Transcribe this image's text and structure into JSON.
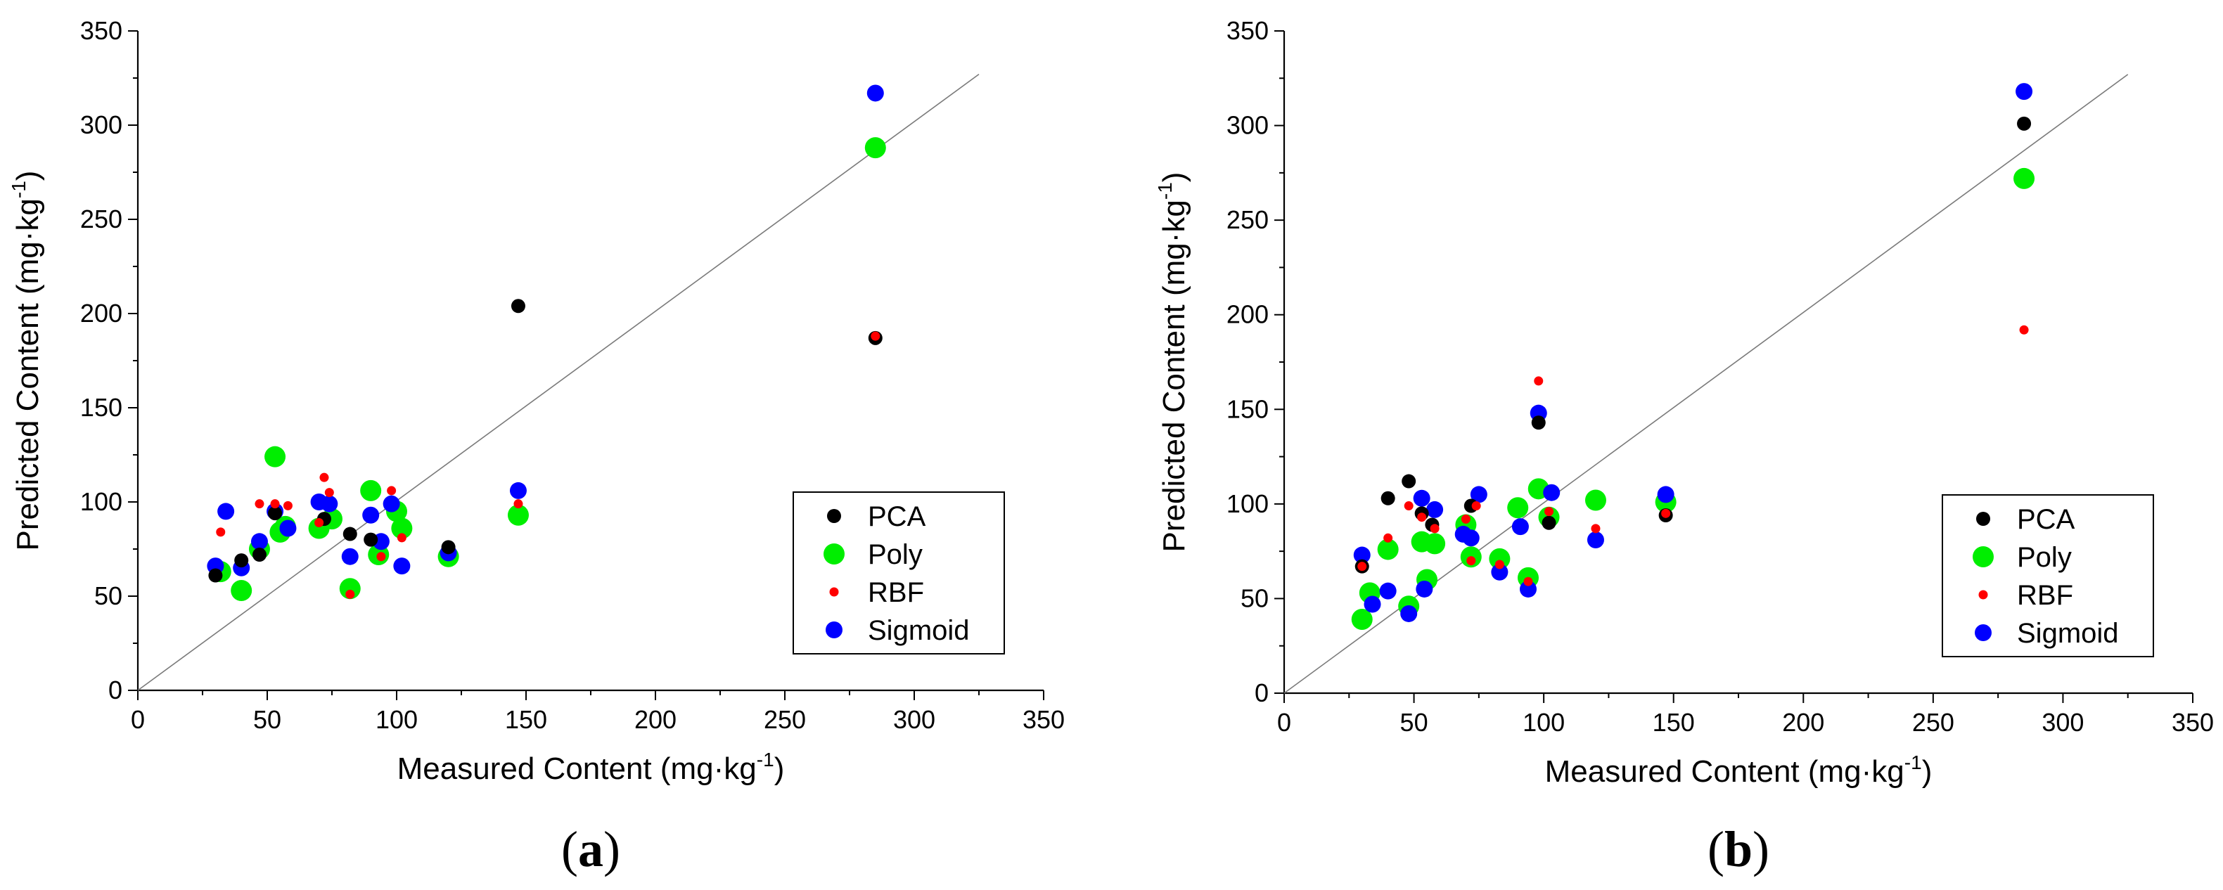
{
  "chart_data": [
    {
      "type": "scatter",
      "panel_label": "a",
      "xlabel": "Measured Content (mg·kg",
      "ylabel": "Predicted Content (mg·kg",
      "unit_superscript": "-1",
      "xlim": [
        0,
        350
      ],
      "ylim": [
        0,
        350
      ],
      "xticks": [
        "0",
        "50",
        "100",
        "150",
        "200",
        "250",
        "300",
        "350"
      ],
      "yticks": [
        "0",
        "50",
        "100",
        "150",
        "200",
        "250",
        "300",
        "350"
      ],
      "reference_line": {
        "x": [
          0,
          325
        ],
        "y": [
          0,
          327
        ]
      },
      "legend_position": "lower-right",
      "series": [
        {
          "name": "PCA",
          "color": "#000000",
          "x": [
            30,
            40,
            47,
            53,
            72,
            82,
            90,
            120,
            147,
            285
          ],
          "y": [
            61,
            69,
            72,
            94,
            91,
            83,
            80,
            76,
            204,
            187
          ]
        },
        {
          "name": "Poly",
          "color": "#00ee00",
          "x": [
            32,
            40,
            47,
            53,
            55,
            57,
            70,
            75,
            82,
            90,
            93,
            100,
            102,
            120,
            147,
            285
          ],
          "y": [
            63,
            53,
            75,
            124,
            84,
            87,
            86,
            91,
            54,
            106,
            72,
            95,
            86,
            71,
            93,
            288
          ]
        },
        {
          "name": "RBF",
          "color": "#ff0000",
          "x": [
            32,
            47,
            53,
            58,
            70,
            72,
            74,
            82,
            94,
            98,
            102,
            147,
            285
          ],
          "y": [
            84,
            99,
            99,
            98,
            89,
            113,
            105,
            51,
            71,
            106,
            81,
            99,
            188
          ]
        },
        {
          "name": "Sigmoid",
          "color": "#0000ff",
          "x": [
            30,
            34,
            40,
            47,
            53,
            58,
            70,
            74,
            82,
            90,
            94,
            98,
            102,
            120,
            147,
            285
          ],
          "y": [
            66,
            95,
            65,
            79,
            95,
            86,
            100,
            99,
            71,
            93,
            79,
            99,
            66,
            73,
            106,
            317
          ]
        }
      ]
    },
    {
      "type": "scatter",
      "panel_label": "b",
      "xlabel": "Measured Content (mg·kg",
      "ylabel": "Predicted Content (mg·kg",
      "unit_superscript": "-1",
      "xlim": [
        0,
        350
      ],
      "ylim": [
        0,
        350
      ],
      "xticks": [
        "0",
        "50",
        "100",
        "150",
        "200",
        "250",
        "300",
        "350"
      ],
      "yticks": [
        "0",
        "50",
        "100",
        "150",
        "200",
        "250",
        "300",
        "350"
      ],
      "reference_line": {
        "x": [
          0,
          325
        ],
        "y": [
          0,
          327
        ]
      },
      "legend_position": "lower-right",
      "series": [
        {
          "name": "PCA",
          "color": "#000000",
          "x": [
            30,
            40,
            48,
            53,
            57,
            72,
            98,
            102,
            147,
            285
          ],
          "y": [
            67,
            103,
            112,
            95,
            89,
            99,
            143,
            90,
            94,
            301
          ]
        },
        {
          "name": "Poly",
          "color": "#00ee00",
          "x": [
            30,
            33,
            40,
            48,
            53,
            55,
            58,
            70,
            72,
            83,
            90,
            94,
            98,
            102,
            120,
            147,
            285
          ],
          "y": [
            39,
            53,
            76,
            46,
            80,
            60,
            79,
            89,
            72,
            71,
            98,
            61,
            108,
            93,
            102,
            101,
            272
          ]
        },
        {
          "name": "RBF",
          "color": "#ff0000",
          "x": [
            30,
            40,
            48,
            53,
            58,
            70,
            72,
            74,
            83,
            94,
            98,
            102,
            120,
            147,
            285
          ],
          "y": [
            67,
            82,
            99,
            93,
            87,
            92,
            70,
            99,
            68,
            59,
            165,
            96,
            87,
            95,
            192
          ]
        },
        {
          "name": "Sigmoid",
          "color": "#0000ff",
          "x": [
            30,
            34,
            40,
            48,
            53,
            54,
            58,
            69,
            72,
            75,
            83,
            91,
            94,
            98,
            103,
            120,
            147,
            285
          ],
          "y": [
            73,
            47,
            54,
            42,
            103,
            55,
            97,
            84,
            82,
            105,
            64,
            88,
            55,
            148,
            106,
            81,
            105,
            318
          ]
        }
      ]
    }
  ]
}
